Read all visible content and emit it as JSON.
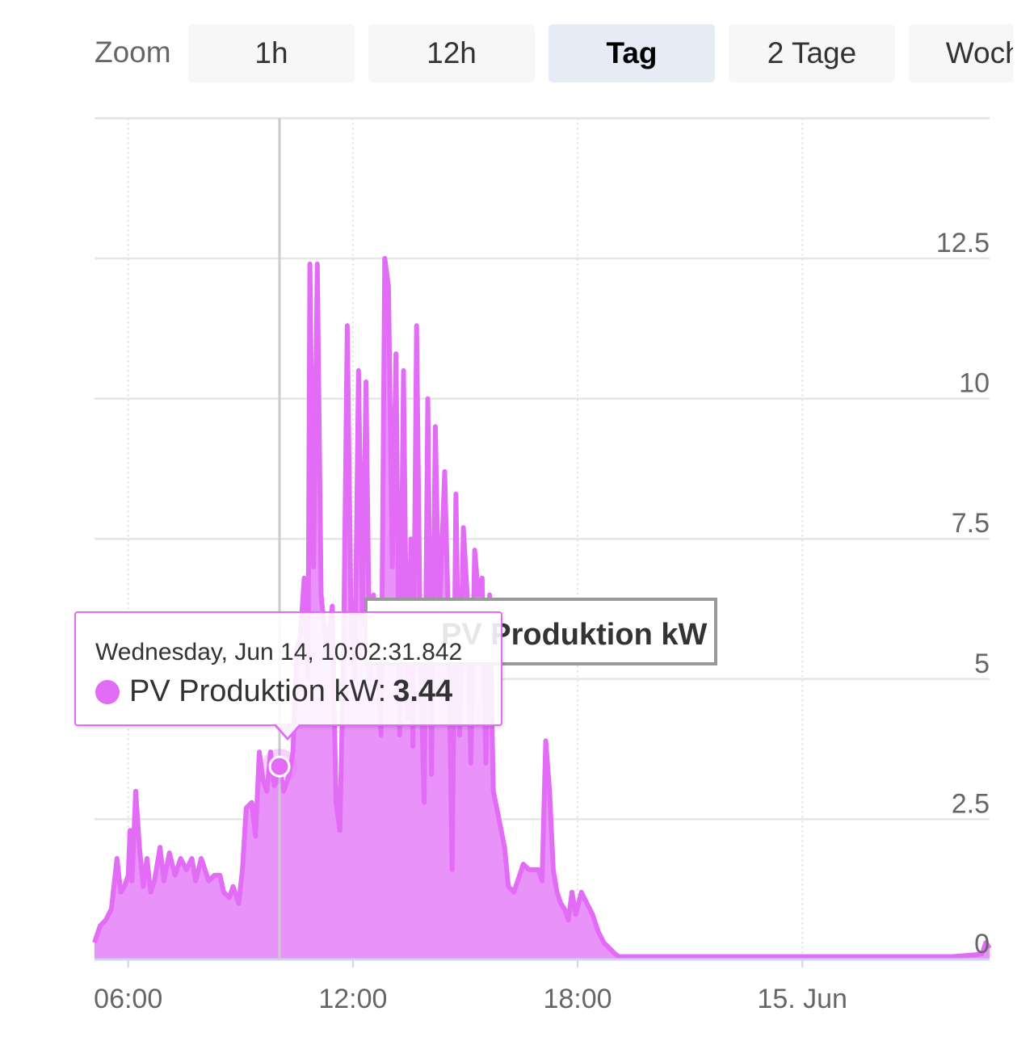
{
  "zoom": {
    "label": "Zoom",
    "buttons": [
      {
        "label": "1h",
        "selected": false
      },
      {
        "label": "12h",
        "selected": false
      },
      {
        "label": "Tag",
        "selected": true
      },
      {
        "label": "2 Tage",
        "selected": false
      },
      {
        "label": "Woche",
        "selected": false
      }
    ]
  },
  "tooltip": {
    "time": "Wednesday, Jun 14, 10:02:31.842",
    "series": "PV Produktion kW:",
    "value": "3.44"
  },
  "chart_data": {
    "type": "area",
    "title": "",
    "xlabel": "",
    "ylabel": "",
    "series_name": "PV Produktion kW",
    "color": "#e36cf7",
    "fill_color": "#e88cf9",
    "grid": true,
    "ylim": [
      0,
      15
    ],
    "yticks": [
      {
        "v": 0,
        "label": "0"
      },
      {
        "v": 2.5,
        "label": "2.5"
      },
      {
        "v": 5,
        "label": "5"
      },
      {
        "v": 7.5,
        "label": "7.5"
      },
      {
        "v": 10,
        "label": "10"
      },
      {
        "v": 12.5,
        "label": "12.5"
      }
    ],
    "xlim": [
      5.1,
      29.0
    ],
    "xticks": [
      {
        "v": 6,
        "label": "06:00"
      },
      {
        "v": 12,
        "label": "12:00"
      },
      {
        "v": 18,
        "label": "18:00"
      },
      {
        "v": 24,
        "label": "15. Jun"
      }
    ],
    "crosshair_x": 10.04,
    "points": [
      [
        5.1,
        0.3
      ],
      [
        5.25,
        0.6
      ],
      [
        5.4,
        0.7
      ],
      [
        5.55,
        0.9
      ],
      [
        5.7,
        1.8
      ],
      [
        5.8,
        1.2
      ],
      [
        5.9,
        1.3
      ],
      [
        6.0,
        1.5
      ],
      [
        6.05,
        2.3
      ],
      [
        6.1,
        1.4
      ],
      [
        6.2,
        3.0
      ],
      [
        6.3,
        2.0
      ],
      [
        6.4,
        1.3
      ],
      [
        6.5,
        1.8
      ],
      [
        6.6,
        1.2
      ],
      [
        6.7,
        1.4
      ],
      [
        6.85,
        2.0
      ],
      [
        6.95,
        1.4
      ],
      [
        7.1,
        1.9
      ],
      [
        7.25,
        1.5
      ],
      [
        7.4,
        1.8
      ],
      [
        7.55,
        1.6
      ],
      [
        7.7,
        1.8
      ],
      [
        7.8,
        1.4
      ],
      [
        7.95,
        1.8
      ],
      [
        8.05,
        1.6
      ],
      [
        8.15,
        1.4
      ],
      [
        8.3,
        1.5
      ],
      [
        8.45,
        1.5
      ],
      [
        8.55,
        1.2
      ],
      [
        8.7,
        1.1
      ],
      [
        8.8,
        1.3
      ],
      [
        8.95,
        1.0
      ],
      [
        9.05,
        1.6
      ],
      [
        9.15,
        2.7
      ],
      [
        9.3,
        2.8
      ],
      [
        9.4,
        2.2
      ],
      [
        9.5,
        3.7
      ],
      [
        9.6,
        3.2
      ],
      [
        9.7,
        3.0
      ],
      [
        9.8,
        3.7
      ],
      [
        9.9,
        3.1
      ],
      [
        10.0,
        3.2
      ],
      [
        10.04,
        3.44
      ],
      [
        10.15,
        3.0
      ],
      [
        10.3,
        3.3
      ],
      [
        10.4,
        3.7
      ],
      [
        10.5,
        5.5
      ],
      [
        10.6,
        5.8
      ],
      [
        10.7,
        6.8
      ],
      [
        10.8,
        5.0
      ],
      [
        10.85,
        12.4
      ],
      [
        10.95,
        7.0
      ],
      [
        11.05,
        12.4
      ],
      [
        11.15,
        6.5
      ],
      [
        11.3,
        5.5
      ],
      [
        11.45,
        6.3
      ],
      [
        11.55,
        2.8
      ],
      [
        11.65,
        2.3
      ],
      [
        11.75,
        5.5
      ],
      [
        11.85,
        11.3
      ],
      [
        11.95,
        6.0
      ],
      [
        12.05,
        5.0
      ],
      [
        12.15,
        10.5
      ],
      [
        12.25,
        6.0
      ],
      [
        12.35,
        10.3
      ],
      [
        12.45,
        5.0
      ],
      [
        12.55,
        6.5
      ],
      [
        12.65,
        5.5
      ],
      [
        12.75,
        4.0
      ],
      [
        12.85,
        12.5
      ],
      [
        12.95,
        12.0
      ],
      [
        13.05,
        7.0
      ],
      [
        13.15,
        10.8
      ],
      [
        13.25,
        4.0
      ],
      [
        13.35,
        10.5
      ],
      [
        13.45,
        4.3
      ],
      [
        13.55,
        7.5
      ],
      [
        13.6,
        3.8
      ],
      [
        13.7,
        11.3
      ],
      [
        13.8,
        5.5
      ],
      [
        13.9,
        2.8
      ],
      [
        14.0,
        10.0
      ],
      [
        14.1,
        3.3
      ],
      [
        14.2,
        9.5
      ],
      [
        14.3,
        6.0
      ],
      [
        14.45,
        8.7
      ],
      [
        14.55,
        6.0
      ],
      [
        14.65,
        1.6
      ],
      [
        14.75,
        8.3
      ],
      [
        14.85,
        4.0
      ],
      [
        14.95,
        7.7
      ],
      [
        15.05,
        6.5
      ],
      [
        15.15,
        3.5
      ],
      [
        15.25,
        7.3
      ],
      [
        15.35,
        6.5
      ],
      [
        15.45,
        6.8
      ],
      [
        15.55,
        3.5
      ],
      [
        15.65,
        6.5
      ],
      [
        15.75,
        3.0
      ],
      [
        15.9,
        2.5
      ],
      [
        16.05,
        2.0
      ],
      [
        16.15,
        1.3
      ],
      [
        16.3,
        1.2
      ],
      [
        16.45,
        1.5
      ],
      [
        16.55,
        1.7
      ],
      [
        16.7,
        1.6
      ],
      [
        16.85,
        1.6
      ],
      [
        16.95,
        1.6
      ],
      [
        17.05,
        1.4
      ],
      [
        17.15,
        3.9
      ],
      [
        17.25,
        3.0
      ],
      [
        17.35,
        1.6
      ],
      [
        17.45,
        1.2
      ],
      [
        17.55,
        1.0
      ],
      [
        17.65,
        0.9
      ],
      [
        17.75,
        0.7
      ],
      [
        17.85,
        1.2
      ],
      [
        17.95,
        0.8
      ],
      [
        18.1,
        1.2
      ],
      [
        18.25,
        1.0
      ],
      [
        18.4,
        0.8
      ],
      [
        18.55,
        0.5
      ],
      [
        18.7,
        0.3
      ],
      [
        18.85,
        0.2
      ],
      [
        19.0,
        0.1
      ],
      [
        19.1,
        0.05
      ],
      [
        19.3,
        0.05
      ],
      [
        20.0,
        0.05
      ],
      [
        22.0,
        0.05
      ],
      [
        24.0,
        0.05
      ],
      [
        26.0,
        0.05
      ],
      [
        28.0,
        0.05
      ],
      [
        28.6,
        0.08
      ],
      [
        28.8,
        0.1
      ],
      [
        28.9,
        0.3
      ],
      [
        29.0,
        0.2
      ]
    ]
  }
}
